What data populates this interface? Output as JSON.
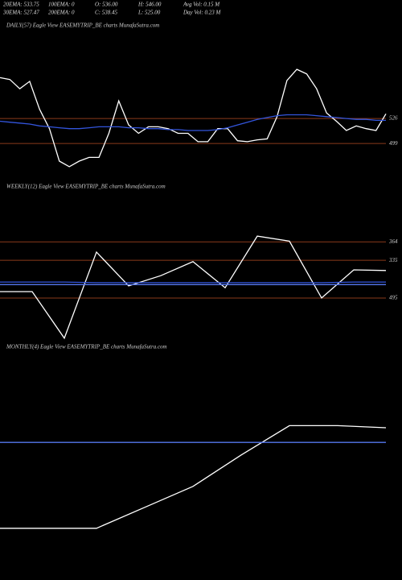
{
  "header": {
    "items": [
      "20EMA: 533.75",
      "100EMA: 0",
      "O: 536.00",
      "H: 546.00",
      "Avg Vol: 0.15 M",
      "30EMA: 527.47",
      "200EMA: 0",
      "C: 538.45",
      "L: 525.00",
      "Day Vol: 0.23 M"
    ]
  },
  "chart_data": [
    {
      "type": "line",
      "title": "DAILY(57) Eagle  View  EASEMYTRIP_BE charts MunafaSutra.com",
      "ylim": [
        467,
        619
      ],
      "yticks": [
        526,
        499
      ],
      "grid": true,
      "grid_color": "#8a3a1a",
      "series": [
        {
          "color": "#ffffff",
          "values": [
            570,
            568,
            558,
            566,
            536,
            515,
            480,
            474,
            480,
            484,
            484,
            510,
            545,
            519,
            510,
            517,
            517,
            515,
            510,
            510,
            501,
            501,
            515,
            515,
            502,
            501,
            503,
            504,
            528,
            567,
            579,
            574,
            558,
            532,
            523,
            513,
            518,
            515,
            513,
            531
          ]
        },
        {
          "color": "#3355dd",
          "values": [
            523,
            522,
            521,
            520,
            518,
            517,
            516,
            515,
            515,
            516,
            517,
            517,
            517,
            516,
            516,
            515,
            515,
            514,
            514,
            513,
            513,
            513,
            514,
            516,
            519,
            522,
            525,
            527,
            529,
            530,
            530,
            530,
            529,
            528,
            527,
            526,
            525,
            525,
            524,
            524
          ]
        }
      ]
    },
    {
      "type": "line",
      "title": "WEEKLY(12) Eagle  View  EASEMYTRIP_BE charts MunafaSutra.com",
      "ylim": [
        238,
        440
      ],
      "yticks": [
        364,
        335
      ],
      "grid": true,
      "grid_color": "#8a3a1a",
      "annotations": [
        {
          "text": "495"
        }
      ],
      "series": [
        {
          "color": "#ffffff",
          "values": [
            286,
            286,
            213,
            348,
            295,
            311,
            333,
            292,
            373,
            365,
            276,
            320,
            319
          ]
        },
        {
          "color": "#3355dd",
          "values": [
            301,
            301,
            301,
            300,
            300,
            300,
            300,
            300,
            300,
            300,
            300,
            301,
            301
          ]
        },
        {
          "color": "#5577ee",
          "values": [
            297,
            297,
            297,
            297,
            297,
            297,
            297,
            297,
            297,
            297,
            297,
            297,
            297
          ]
        }
      ]
    },
    {
      "type": "line",
      "title": "MONTHLY(4) Eagle  View  EASEMYTRIP_BE charts MunafaSutra.com",
      "ylim": [
        0,
        100
      ],
      "series": [
        {
          "color": "#ffffff",
          "values": [
            17,
            17,
            17,
            27,
            37,
            52,
            66,
            66,
            65
          ]
        },
        {
          "color": "#5577ee",
          "values": [
            58,
            58,
            58,
            58,
            58,
            58,
            58,
            58,
            58
          ]
        }
      ]
    }
  ]
}
